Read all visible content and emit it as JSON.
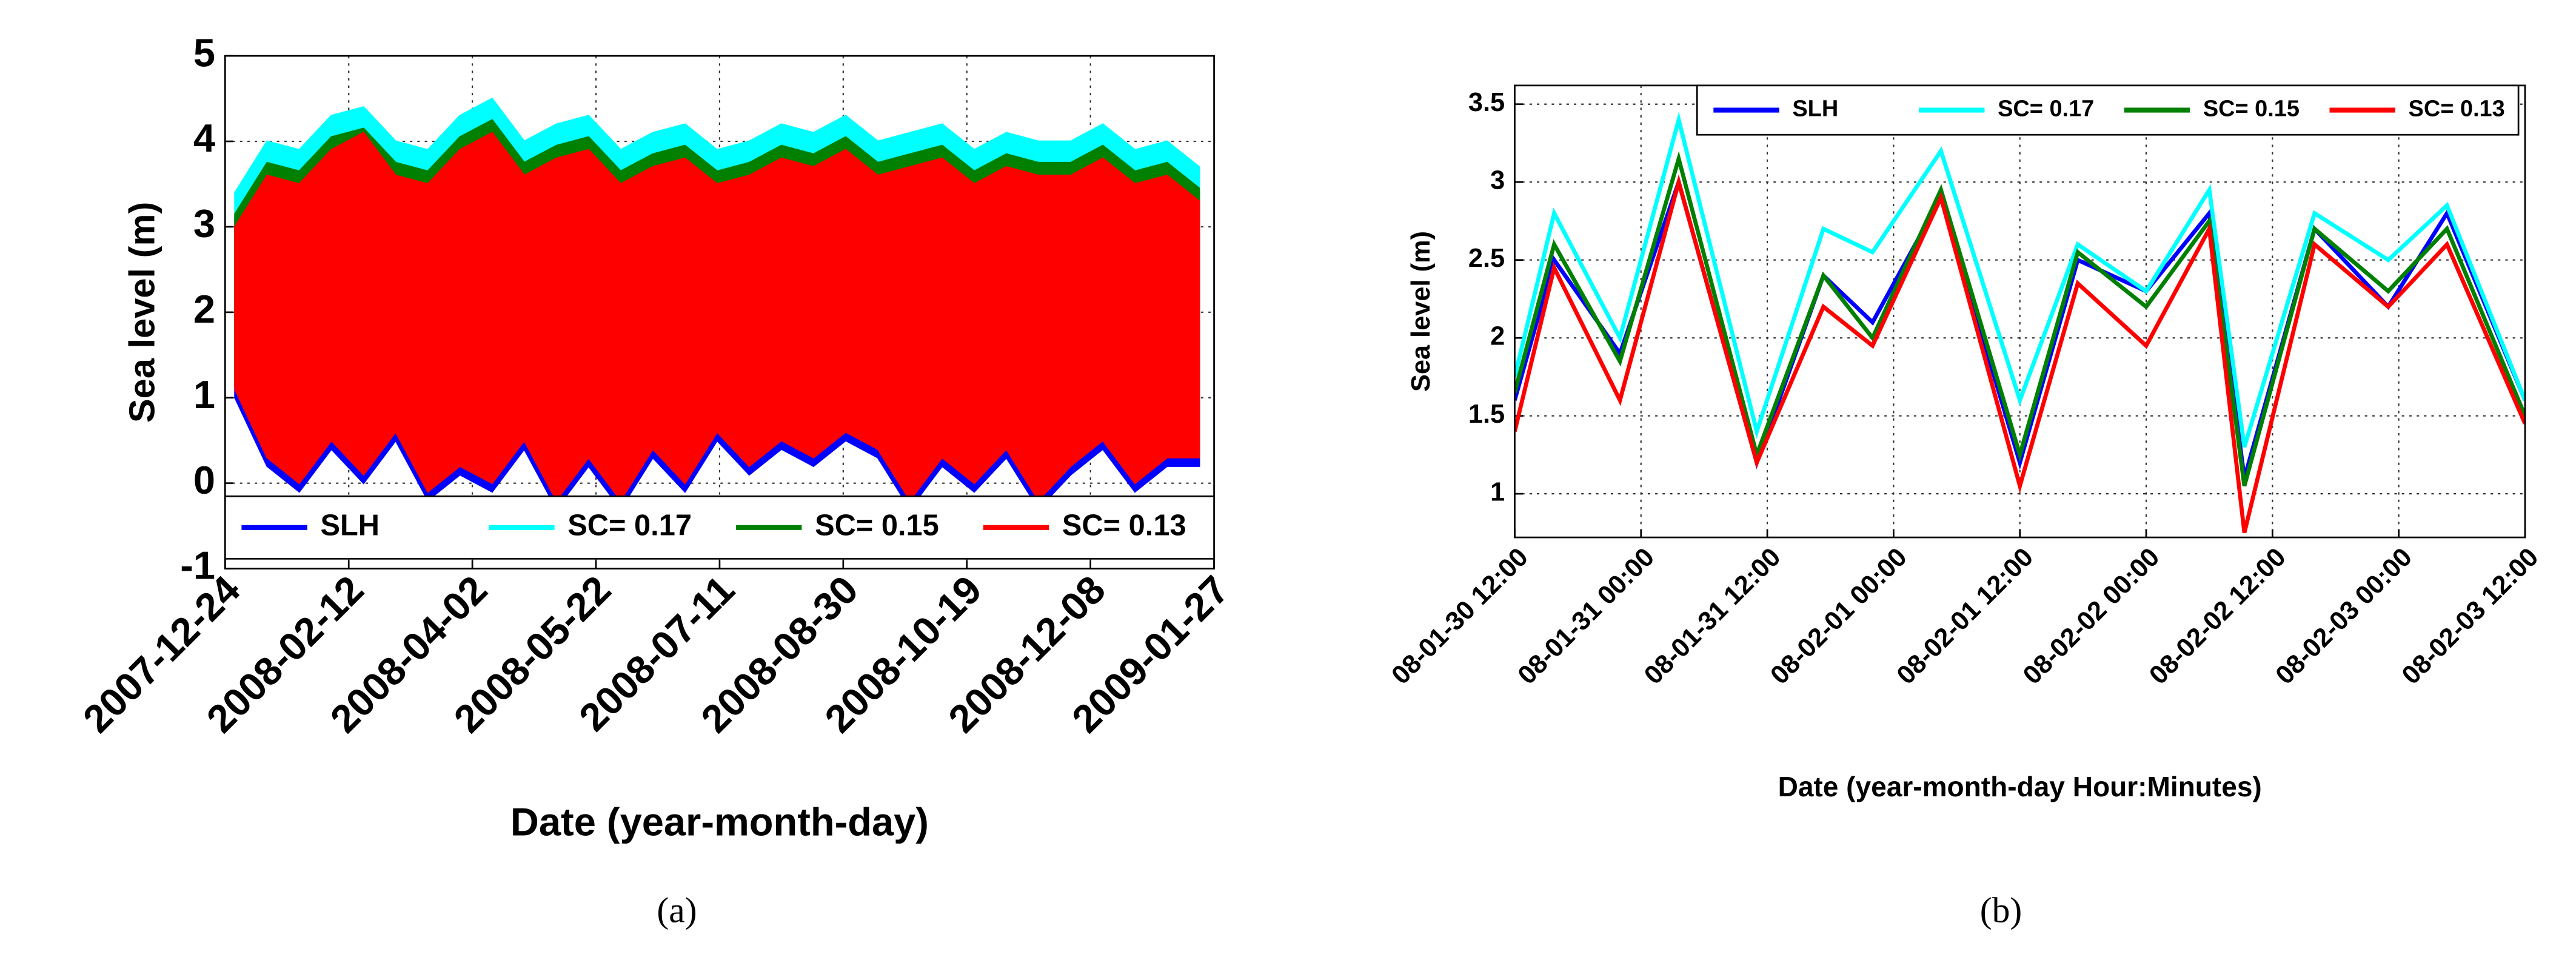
{
  "chart_data": [
    {
      "type": "band",
      "y_label": "Sea level (m)",
      "x_label": "Date (year-month-day)",
      "caption": "(a)",
      "x": [
        "2007-12-28",
        "2008-01-10",
        "2008-01-23",
        "2008-02-05",
        "2008-02-18",
        "2008-03-02",
        "2008-03-15",
        "2008-03-28",
        "2008-04-10",
        "2008-04-23",
        "2008-05-06",
        "2008-05-19",
        "2008-06-01",
        "2008-06-14",
        "2008-06-27",
        "2008-07-10",
        "2008-07-23",
        "2008-08-05",
        "2008-08-18",
        "2008-08-31",
        "2008-09-13",
        "2008-09-26",
        "2008-10-09",
        "2008-10-22",
        "2008-11-04",
        "2008-11-17",
        "2008-11-30",
        "2008-12-13",
        "2008-12-26",
        "2009-01-08",
        "2009-01-21"
      ],
      "series": [
        {
          "name": "SLH",
          "color": "#0000ff",
          "high": [
            3.1,
            3.7,
            3.6,
            4.0,
            4.1,
            3.7,
            3.6,
            4.0,
            4.2,
            3.7,
            3.9,
            4.0,
            3.6,
            3.8,
            3.9,
            3.6,
            3.7,
            3.9,
            3.8,
            4.0,
            3.7,
            3.8,
            3.9,
            3.6,
            3.8,
            3.7,
            3.7,
            3.9,
            3.6,
            3.7,
            3.4
          ],
          "low": [
            1.0,
            0.2,
            -0.1,
            0.4,
            0.0,
            0.5,
            -0.2,
            0.1,
            -0.1,
            0.4,
            -0.3,
            0.2,
            -0.3,
            0.3,
            -0.1,
            0.5,
            0.1,
            0.4,
            0.2,
            0.5,
            0.3,
            -0.3,
            0.2,
            -0.1,
            0.3,
            -0.3,
            0.1,
            0.4,
            -0.1,
            0.2,
            0.2
          ]
        },
        {
          "name": "SC= 0.17",
          "color": "#00ffff",
          "high": [
            3.4,
            4.0,
            3.9,
            4.3,
            4.4,
            4.0,
            3.9,
            4.3,
            4.5,
            4.0,
            4.2,
            4.3,
            3.9,
            4.1,
            4.2,
            3.9,
            4.0,
            4.2,
            4.1,
            4.3,
            4.0,
            4.1,
            4.2,
            3.9,
            4.1,
            4.0,
            4.0,
            4.2,
            3.9,
            4.0,
            3.7
          ],
          "low": [
            1.2,
            0.4,
            0.1,
            0.6,
            0.2,
            0.7,
            0.0,
            0.3,
            0.1,
            0.6,
            -0.1,
            0.4,
            -0.1,
            0.5,
            0.1,
            0.7,
            0.3,
            0.6,
            0.4,
            0.7,
            0.5,
            -0.1,
            0.4,
            0.1,
            0.5,
            -0.1,
            0.3,
            0.6,
            0.1,
            0.4,
            0.4
          ]
        },
        {
          "name": "SC= 0.15",
          "color": "#008000",
          "high": [
            3.15,
            3.75,
            3.65,
            4.05,
            4.15,
            3.75,
            3.65,
            4.05,
            4.25,
            3.75,
            3.95,
            4.05,
            3.65,
            3.85,
            3.95,
            3.65,
            3.75,
            3.95,
            3.85,
            4.05,
            3.75,
            3.85,
            3.95,
            3.65,
            3.85,
            3.75,
            3.75,
            3.95,
            3.65,
            3.75,
            3.45
          ],
          "low": [
            1.15,
            0.35,
            0.05,
            0.55,
            0.15,
            0.65,
            -0.05,
            0.25,
            0.05,
            0.55,
            -0.15,
            0.35,
            -0.15,
            0.45,
            0.05,
            0.65,
            0.25,
            0.55,
            0.35,
            0.65,
            0.45,
            -0.15,
            0.35,
            0.05,
            0.45,
            -0.15,
            0.25,
            0.55,
            0.05,
            0.35,
            0.35
          ]
        },
        {
          "name": "SC= 0.13",
          "color": "#ff0000",
          "high": [
            3.0,
            3.6,
            3.5,
            3.9,
            4.1,
            3.6,
            3.5,
            3.9,
            4.1,
            3.6,
            3.8,
            3.9,
            3.5,
            3.7,
            3.8,
            3.5,
            3.6,
            3.8,
            3.7,
            3.9,
            3.6,
            3.7,
            3.8,
            3.5,
            3.7,
            3.6,
            3.6,
            3.8,
            3.5,
            3.6,
            3.3
          ],
          "low": [
            1.1,
            0.3,
            0.0,
            0.5,
            0.1,
            0.6,
            -0.1,
            0.2,
            0.0,
            0.5,
            -0.2,
            0.3,
            -0.2,
            0.4,
            0.0,
            0.6,
            0.2,
            0.5,
            0.3,
            0.6,
            0.4,
            -0.2,
            0.3,
            0.0,
            0.4,
            -0.2,
            0.2,
            0.5,
            0.0,
            0.3,
            0.3
          ]
        }
      ],
      "xlim": [
        "2007-12-24",
        "2009-01-27"
      ],
      "xticks": [
        "2007-12-24",
        "2008-02-12",
        "2008-04-02",
        "2008-05-22",
        "2008-07-11",
        "2008-08-30",
        "2008-10-19",
        "2008-12-08",
        "2009-01-27"
      ],
      "ylim": [
        -1,
        5
      ],
      "yticks": [
        -1,
        0,
        1,
        2,
        3,
        4,
        5
      ],
      "grid": true,
      "legend": "bottom"
    },
    {
      "type": "line",
      "y_label": "Sea level (m)",
      "x_label": "Date (year-month-day Hour:Minutes)",
      "caption": "(b)",
      "x": [
        "08-01-30 12:00",
        "08-01-30 15:45",
        "08-01-30 22:00",
        "08-01-31 03:35",
        "08-01-31 11:00",
        "08-01-31 17:20",
        "08-01-31 22:00",
        "08-02-01 04:30",
        "08-02-01 12:00",
        "08-02-01 17:30",
        "08-02-02 00:00",
        "08-02-02 06:00",
        "08-02-02 09:20",
        "08-02-02 16:00",
        "08-02-02 23:00",
        "08-02-03 04:35",
        "08-02-03 12:00"
      ],
      "series": [
        {
          "name": "SLH",
          "color": "#0000ff",
          "values": [
            1.6,
            2.5,
            1.9,
            3.0,
            1.2,
            2.4,
            2.1,
            2.9,
            1.2,
            2.5,
            2.3,
            2.8,
            1.1,
            2.7,
            2.2,
            2.8,
            1.6
          ]
        },
        {
          "name": "SC= 0.17",
          "color": "#00ffff",
          "values": [
            1.75,
            2.8,
            2.0,
            3.4,
            1.4,
            2.7,
            2.55,
            3.2,
            1.6,
            2.6,
            2.3,
            2.95,
            1.3,
            2.8,
            2.5,
            2.85,
            1.6
          ]
        },
        {
          "name": "SC= 0.15",
          "color": "#008000",
          "values": [
            1.65,
            2.6,
            1.85,
            3.15,
            1.25,
            2.4,
            2.0,
            2.95,
            1.25,
            2.55,
            2.2,
            2.75,
            1.05,
            2.7,
            2.3,
            2.7,
            1.5
          ]
        },
        {
          "name": "SC= 0.13",
          "color": "#ff0000",
          "values": [
            1.4,
            2.45,
            1.6,
            3.0,
            1.2,
            2.2,
            1.95,
            2.9,
            1.05,
            2.35,
            1.95,
            2.7,
            0.75,
            2.6,
            2.2,
            2.6,
            1.45
          ]
        }
      ],
      "xlim": [
        "08-01-30 12:00",
        "08-02-03 12:00"
      ],
      "xticks": [
        "08-01-30 12:00",
        "08-01-31 00:00",
        "08-01-31 12:00",
        "08-02-01 00:00",
        "08-02-01 12:00",
        "08-02-02 00:00",
        "08-02-02 12:00",
        "08-02-03 00:00",
        "08-02-03 12:00"
      ],
      "ylim": [
        0.72,
        3.62
      ],
      "yticks": [
        1,
        1.5,
        2,
        2.5,
        3,
        3.5
      ],
      "grid": true,
      "legend": "top"
    }
  ]
}
